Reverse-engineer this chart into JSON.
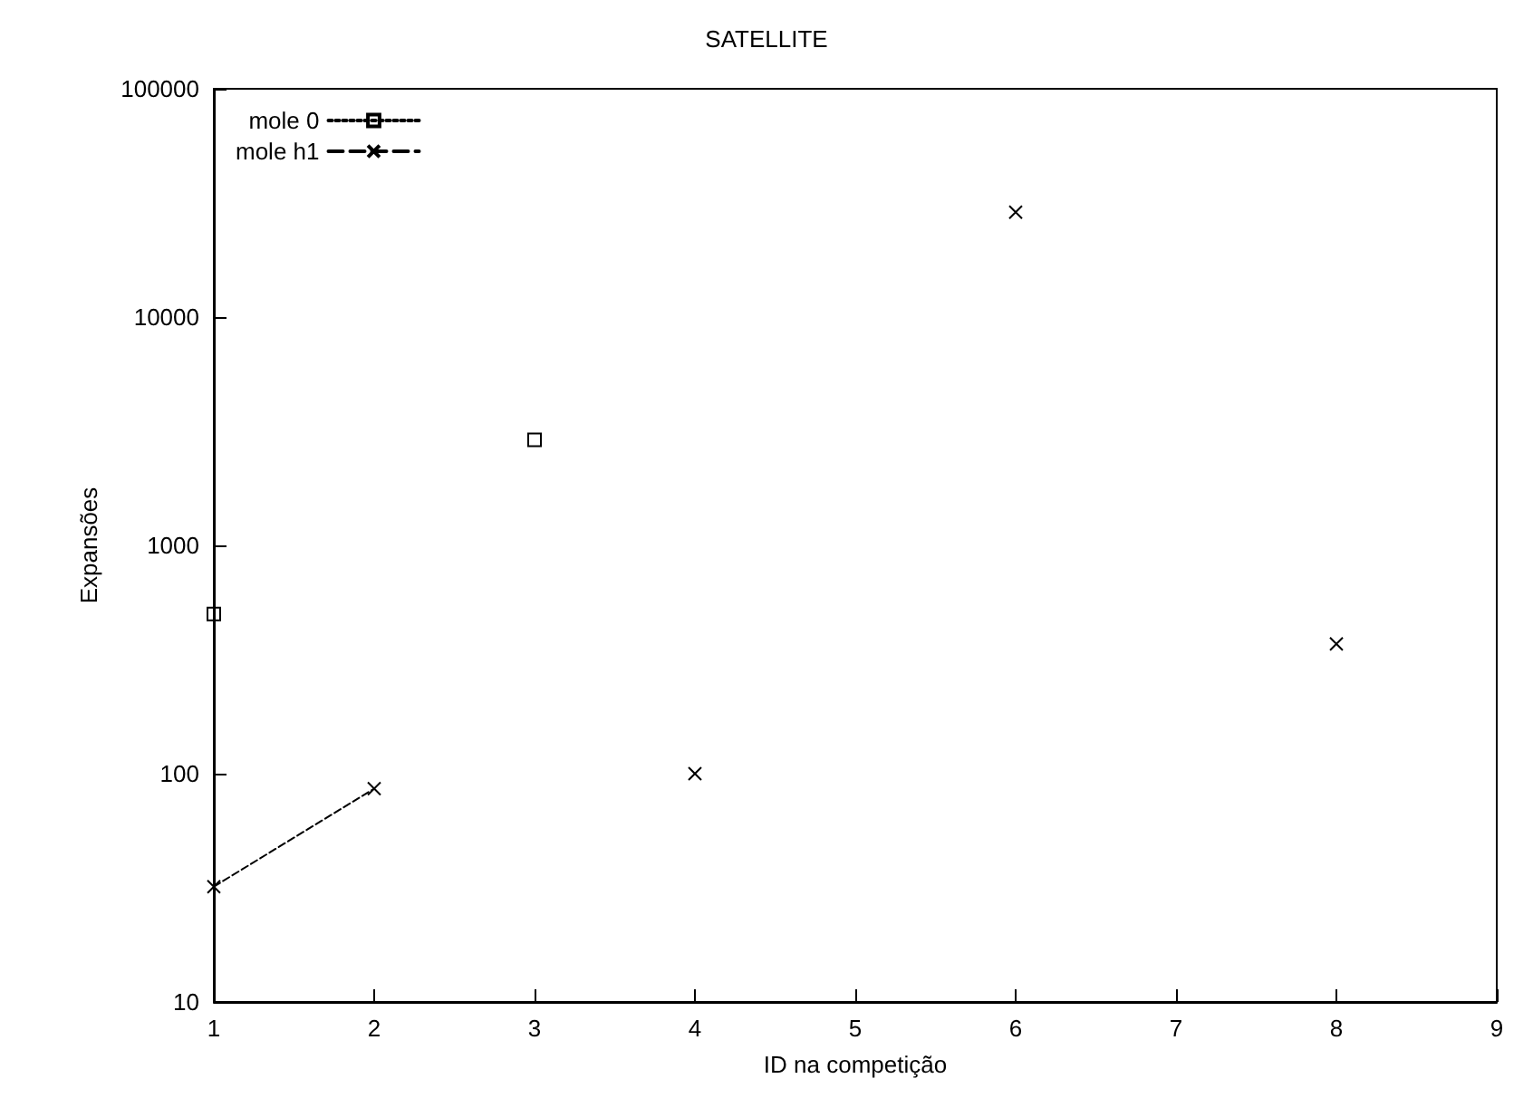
{
  "chart_data": {
    "type": "line",
    "title": "SATELLITE",
    "xlabel": "ID na competição",
    "ylabel": "Expansões",
    "xlim": [
      1,
      9
    ],
    "xticks": [
      1,
      2,
      3,
      4,
      5,
      6,
      7,
      8,
      9
    ],
    "ylim": [
      10,
      100000
    ],
    "yticks": [
      10,
      100,
      1000,
      10000,
      100000
    ],
    "log": "y",
    "grid": false,
    "legend": "top left",
    "series": [
      {
        "name": "mole 0",
        "color": "#000000",
        "marker": "square",
        "line_style": "dotted",
        "x": [
          1,
          2,
          3
        ],
        "values": [
          500,
          null,
          2900
        ]
      },
      {
        "name": "mole h1",
        "color": "#000000",
        "marker": "cross",
        "line_style": "dashed",
        "x": [
          1,
          2,
          3,
          4,
          5,
          6,
          7,
          8
        ],
        "values": [
          32,
          86,
          null,
          100,
          null,
          28800,
          null,
          370
        ]
      }
    ]
  }
}
